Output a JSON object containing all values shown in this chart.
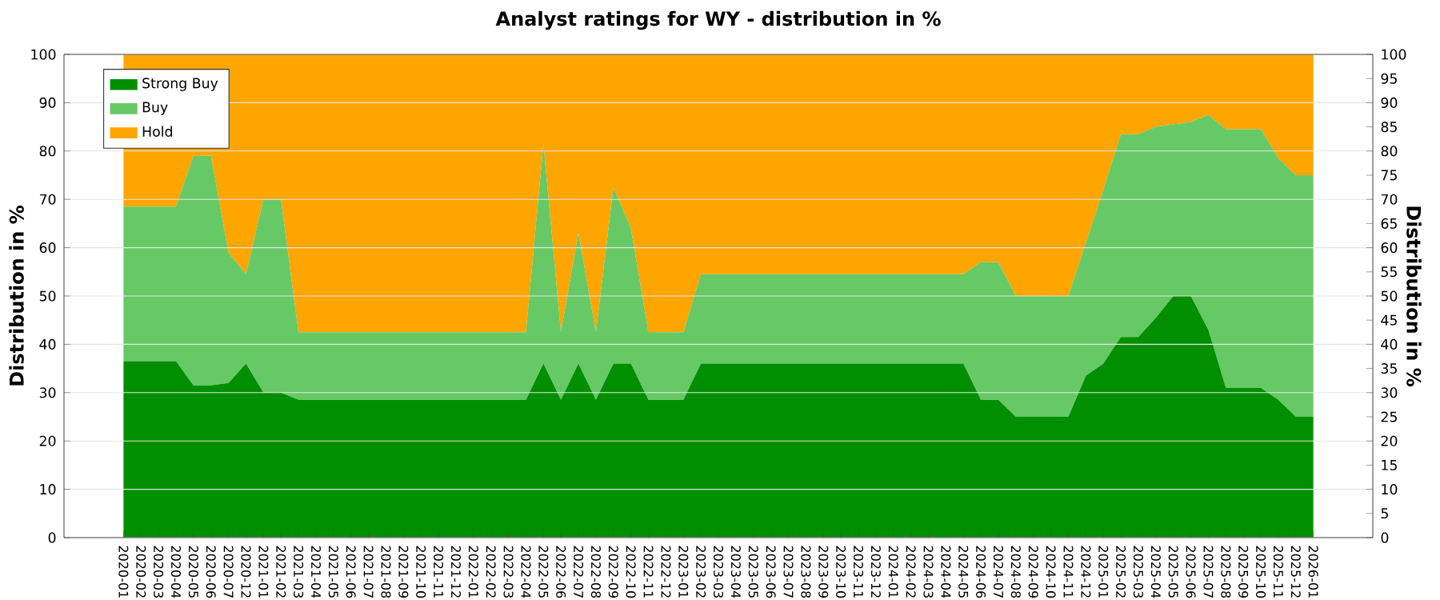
{
  "chart_data": {
    "type": "area",
    "stacked": true,
    "title": "Analyst ratings for WY - distribution in %",
    "ylabel": "Distribution in %",
    "y2label": "Distribution in %",
    "categories": [
      "2020-01",
      "2020-02",
      "2020-03",
      "2020-04",
      "2020-05",
      "2020-06",
      "2020-07",
      "2020-12",
      "2021-01",
      "2021-02",
      "2021-03",
      "2021-04",
      "2021-05",
      "2021-06",
      "2021-07",
      "2021-08",
      "2021-09",
      "2021-10",
      "2021-11",
      "2021-12",
      "2022-01",
      "2022-02",
      "2022-03",
      "2022-04",
      "2022-05",
      "2022-06",
      "2022-07",
      "2022-08",
      "2022-09",
      "2022-10",
      "2022-11",
      "2022-12",
      "2023-01",
      "2023-02",
      "2023-03",
      "2023-04",
      "2023-05",
      "2023-06",
      "2023-07",
      "2023-08",
      "2023-09",
      "2023-10",
      "2023-11",
      "2023-12",
      "2024-01",
      "2024-02",
      "2024-03",
      "2024-04",
      "2024-05",
      "2024-06",
      "2024-07",
      "2024-08",
      "2024-09",
      "2024-10",
      "2024-11",
      "2024-12",
      "2025-01",
      "2025-02",
      "2025-03",
      "2025-04",
      "2025-05",
      "2025-06",
      "2025-07",
      "2025-08",
      "2025-09",
      "2025-10",
      "2025-11",
      "2025-12",
      "2026-01"
    ],
    "series": [
      {
        "name": "Strong Buy",
        "color": "#008f00",
        "values": [
          36.5,
          36.5,
          36.5,
          36.5,
          31.5,
          31.5,
          32,
          36,
          30,
          30,
          28.5,
          28.5,
          28.5,
          28.5,
          28.5,
          28.5,
          28.5,
          28.5,
          28.5,
          28.5,
          28.5,
          28.5,
          28.5,
          28.5,
          36,
          28.5,
          36,
          28.5,
          36,
          36,
          28.5,
          28.5,
          28.5,
          36,
          36,
          36,
          36,
          36,
          36,
          36,
          36,
          36,
          36,
          36,
          36,
          36,
          36,
          36,
          36,
          28.5,
          28.5,
          25,
          25,
          25,
          25,
          33.5,
          36,
          41.5,
          41.5,
          45.5,
          50,
          50,
          43,
          31,
          31,
          31,
          28.5,
          25,
          25
        ]
      },
      {
        "name": "Buy",
        "color": "#66c966",
        "values": [
          32,
          32,
          32,
          32,
          47.5,
          47.5,
          27,
          18.5,
          40,
          40,
          14,
          14,
          14,
          14,
          14,
          14,
          14,
          14,
          14,
          14,
          14,
          14,
          14,
          14,
          45.5,
          14,
          27,
          14,
          36.5,
          28,
          14,
          14,
          14,
          18.5,
          18.5,
          18.5,
          18.5,
          18.5,
          18.5,
          18.5,
          18.5,
          18.5,
          18.5,
          18.5,
          18.5,
          18.5,
          18.5,
          18.5,
          18.5,
          28.5,
          28.5,
          25,
          25,
          25,
          25,
          27.5,
          36,
          42,
          42,
          39.5,
          35.5,
          36,
          44.5,
          53.5,
          53.5,
          53.5,
          50,
          50,
          50
        ]
      },
      {
        "name": "Hold",
        "color": "#ffa500",
        "values": [
          31.5,
          31.5,
          31.5,
          31.5,
          21,
          21,
          41,
          45.5,
          30,
          30,
          57.5,
          57.5,
          57.5,
          57.5,
          57.5,
          57.5,
          57.5,
          57.5,
          57.5,
          57.5,
          57.5,
          57.5,
          57.5,
          57.5,
          18.5,
          57.5,
          37,
          57.5,
          27.5,
          36,
          57.5,
          57.5,
          57.5,
          45.5,
          45.5,
          45.5,
          45.5,
          45.5,
          45.5,
          45.5,
          45.5,
          45.5,
          45.5,
          45.5,
          45.5,
          45.5,
          45.5,
          45.5,
          45.5,
          43,
          43,
          50,
          50,
          50,
          50,
          39,
          28,
          16.5,
          16.5,
          15,
          14.5,
          14,
          12.5,
          15.5,
          15.5,
          15.5,
          21.5,
          25,
          25
        ]
      }
    ],
    "ylim": [
      0,
      100
    ],
    "yticks": [
      0,
      10,
      20,
      30,
      40,
      50,
      60,
      70,
      80,
      90,
      100
    ],
    "y2lim": [
      0,
      100
    ],
    "y2ticks": [
      0,
      5,
      10,
      15,
      20,
      25,
      30,
      35,
      40,
      45,
      50,
      55,
      60,
      65,
      70,
      75,
      80,
      85,
      90,
      95,
      100
    ],
    "grid": "y",
    "legend": "top left"
  }
}
